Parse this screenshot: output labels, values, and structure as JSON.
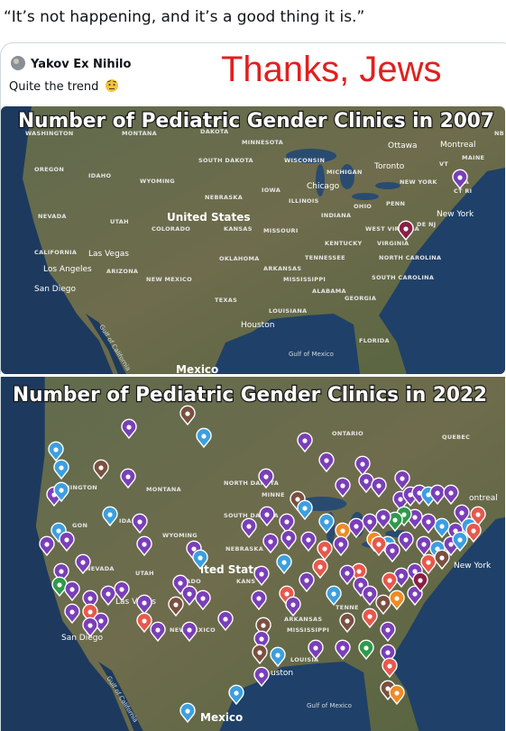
{
  "post": {
    "quote": "“It’s not happening, and it’s a good thing it is.”",
    "author": "Yakov Ex Nihilo",
    "text": "Quite the trend",
    "caption": "Thanks, Jews"
  },
  "maps": [
    {
      "title": "Number of Pediatric Gender Clinics in 2007",
      "labels": [
        "WASHINGTON",
        "MONTANA",
        "DAKOTA",
        "MINNESOTA",
        "SOUTH DAKOTA",
        "WISCONSIN",
        "Ottawa",
        "Montreal",
        "MAINE",
        "NB",
        "OREGON",
        "IDAHO",
        "WYOMING",
        "MICHIGAN",
        "Toronto",
        "VT",
        "NEW YORK",
        "MA",
        "CT RI",
        "Chicago",
        "IOWA",
        "NEBRASKA",
        "ILLINOIS",
        "OHIO",
        "PENN",
        "New York",
        "NEVADA",
        "UTAH",
        "United States",
        "COLORADO",
        "KANSAS",
        "MISSOURI",
        "INDIANA",
        "WEST VIRGINIA",
        "DE NJ",
        "KENTUCKY",
        "VIRGINIA",
        "CALIFORNIA",
        "Las Vegas",
        "TENNESSEE",
        "NORTH CAROLINA",
        "OKLAHOMA",
        "ARKANSAS",
        "Los Angeles",
        "ARIZONA",
        "NEW MEXICO",
        "MISSISSIPPI",
        "SOUTH CAROLINA",
        "San Diego",
        "ALABAMA",
        "TEXAS",
        "GEORGIA",
        "LOUISIANA",
        "Houston",
        "FLORIDA",
        "Gulf of Mexico",
        "Gulf of California",
        "Mexico"
      ]
    },
    {
      "title": "Number of Pediatric Gender Clinics in 2022",
      "labels": [
        "ONTARIO",
        "QUEBEC",
        "HINGTON",
        "MONTANA",
        "NORTH DAKOTA",
        "MINNE",
        "ontreal",
        "SOUTH DAKOTA",
        "GON",
        "IDAHO",
        "WYOMING",
        "NEBRASKA",
        "NEVADA",
        "UTAH",
        "ited States",
        "ORADO",
        "KANS",
        "New York",
        "Las Vegas",
        "TENNE",
        "ARKANSAS",
        "NEW MEXICO",
        "MISSISSIPPI",
        "San Diego",
        "LOUISIA",
        "uston",
        "Gulf of Mexico",
        "Gulf of California",
        "Mexico"
      ]
    }
  ]
}
